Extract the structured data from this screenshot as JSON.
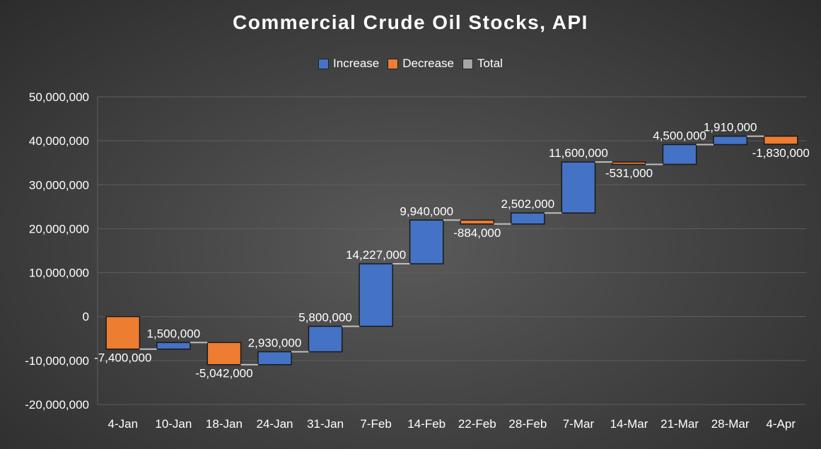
{
  "chart_data": {
    "type": "waterfall",
    "title": "Commercial Crude Oil Stocks, API",
    "categories": [
      "4-Jan",
      "10-Jan",
      "18-Jan",
      "24-Jan",
      "31-Jan",
      "7-Feb",
      "14-Feb",
      "22-Feb",
      "28-Feb",
      "7-Mar",
      "14-Mar",
      "21-Mar",
      "28-Mar",
      "4-Apr"
    ],
    "values": [
      -7400000,
      1500000,
      -5042000,
      2930000,
      5800000,
      14227000,
      9940000,
      -884000,
      2502000,
      11600000,
      -531000,
      4500000,
      1910000,
      -1830000
    ],
    "data_labels": [
      "-7,400,000",
      "1,500,000",
      "-5,042,000",
      "2,930,000",
      "5,800,000",
      "14,227,000",
      "9,940,000",
      "-884,000",
      "2,502,000",
      "11,600,000",
      "-531,000",
      "4,500,000",
      "1,910,000",
      "-1,830,000"
    ],
    "y_ticks": [
      {
        "value": 50000000,
        "label": "50,000,000"
      },
      {
        "value": 40000000,
        "label": "40,000,000"
      },
      {
        "value": 30000000,
        "label": "30,000,000"
      },
      {
        "value": 20000000,
        "label": "20,000,000"
      },
      {
        "value": 10000000,
        "label": "10,000,000"
      },
      {
        "value": 0,
        "label": "0"
      },
      {
        "value": -10000000,
        "label": "-10,000,000"
      },
      {
        "value": -20000000,
        "label": "-20,000,000"
      }
    ],
    "ylim": [
      -20000000,
      50000000
    ],
    "grid": true,
    "legend_position": "top",
    "legend": [
      {
        "label": "Increase",
        "color": "#4472c4"
      },
      {
        "label": "Decrease",
        "color": "#ed7d31"
      },
      {
        "label": "Total",
        "color": "#a5a5a5"
      }
    ]
  },
  "colors": {
    "increase": "#4472c4",
    "decrease": "#ed7d31",
    "total": "#a5a5a5",
    "text": "#ffffff",
    "grid": "#5e5e5e",
    "connector": "#bfbfbf"
  }
}
